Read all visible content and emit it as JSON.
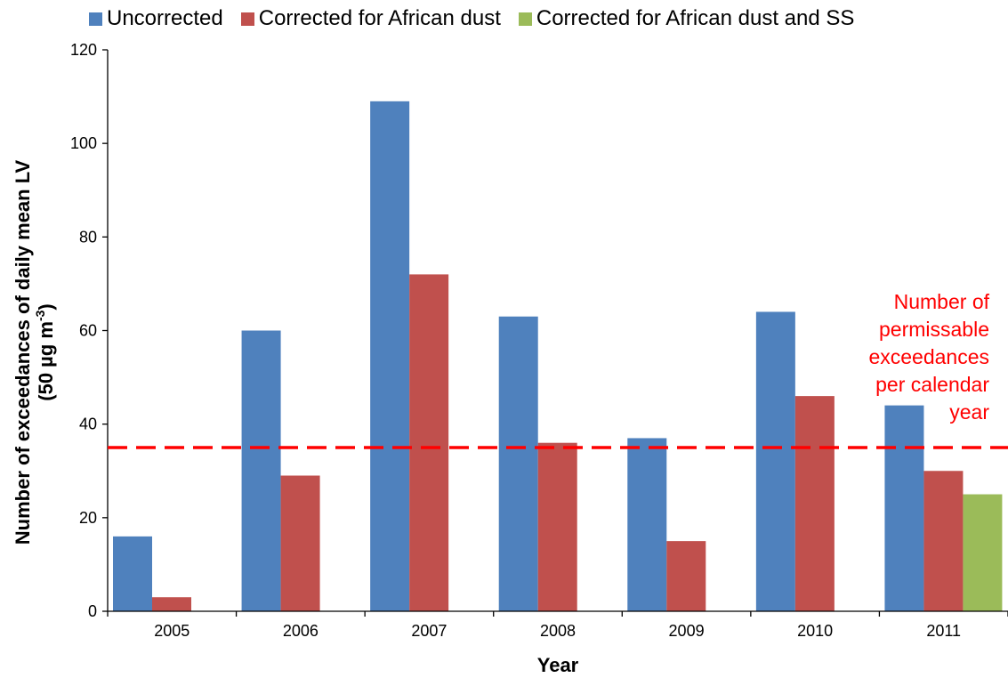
{
  "chart_data": {
    "type": "bar",
    "categories": [
      "2005",
      "2006",
      "2007",
      "2008",
      "2009",
      "2010",
      "2011"
    ],
    "series": [
      {
        "name": "Uncorrected",
        "color": "#4f81bd",
        "values": [
          16,
          60,
          109,
          63,
          37,
          64,
          44
        ]
      },
      {
        "name": "Corrected for African dust",
        "color": "#c0504d",
        "values": [
          3,
          29,
          72,
          36,
          15,
          46,
          30
        ]
      },
      {
        "name": "Corrected for African dust and SS",
        "color": "#9bbb59",
        "values": [
          null,
          null,
          null,
          null,
          null,
          null,
          25
        ]
      }
    ],
    "xlabel": "Year",
    "ylabel_line1": "Number of exceedances of daily mean LV",
    "ylabel_line2_prefix": "(50 µg m",
    "ylabel_line2_sup": "-3",
    "ylabel_line2_suffix": ")",
    "ylim": [
      0,
      120
    ],
    "yticks": [
      0,
      20,
      40,
      60,
      80,
      100,
      120
    ],
    "reference_line": {
      "value": 35,
      "color": "#ff0000",
      "style": "dashed"
    },
    "annotation": [
      "Number of",
      "permissable",
      "exceedances",
      "per calendar",
      "year"
    ],
    "annotation_color": "#ff0000",
    "legend_position": "top",
    "grid": false
  }
}
